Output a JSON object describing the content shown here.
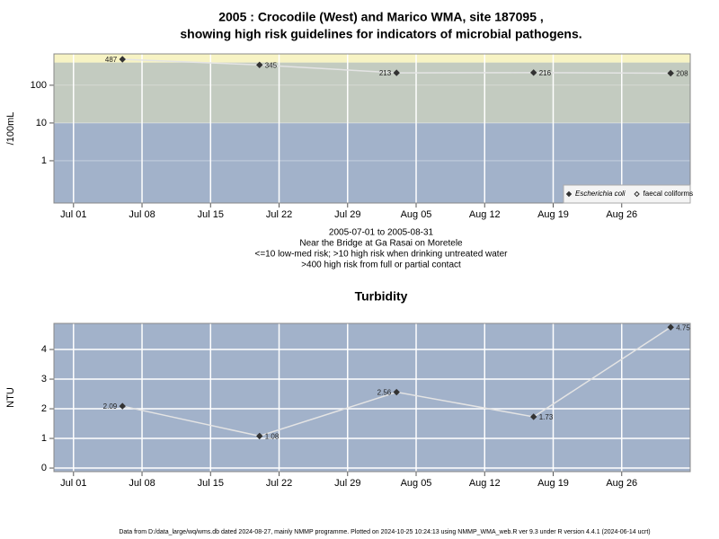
{
  "chart_data": [
    {
      "type": "line",
      "title": [
        "2005 : Crocodile (West) and Marico WMA, site 187095 ,",
        "showing high risk guidelines for indicators of microbial pathogens."
      ],
      "ylabel": "/100mL",
      "log_scale": true,
      "x": [
        "07-06",
        "07-20",
        "08-03",
        "08-17",
        "08-31"
      ],
      "xlim": [
        "06-29",
        "09-02"
      ],
      "xticks": [
        {
          "value": "07-01",
          "label": "Jul 01"
        },
        {
          "value": "07-08",
          "label": "Jul 08"
        },
        {
          "value": "07-15",
          "label": "Jul 15"
        },
        {
          "value": "07-22",
          "label": "Jul 22"
        },
        {
          "value": "07-29",
          "label": "Jul 29"
        },
        {
          "value": "08-05",
          "label": "Aug 05"
        },
        {
          "value": "08-12",
          "label": "Aug 12"
        },
        {
          "value": "08-19",
          "label": "Aug 19"
        },
        {
          "value": "08-26",
          "label": "Aug 26"
        }
      ],
      "ylim": [
        0.076,
        676
      ],
      "yticks": [
        1,
        10,
        100
      ],
      "band_limits": [
        10,
        400
      ],
      "band_colors": [
        "#a2b2ca",
        "#c3cbc0",
        "#f7f3c4"
      ],
      "grid": true,
      "legend_position": "bottom-right",
      "series": [
        {
          "name": "Escherichia coli",
          "color": "#333333",
          "marker": "filled",
          "line_color": "#e4e4e4",
          "values": [
            487,
            345,
            213,
            216,
            208
          ]
        },
        {
          "name": "faecal coliforms",
          "color": "#333333",
          "marker": "open",
          "line_color": "#e4e4e4",
          "values": [
            null,
            null,
            null,
            null,
            null
          ]
        }
      ],
      "notes": [
        "2005-07-01 to 2005-08-31",
        "Near the Bridge at Ga Rasai on Moretele",
        "<=10 low-med risk; >10 high risk when drinking untreated water",
        ">400 high risk from full or partial contact"
      ]
    },
    {
      "type": "line",
      "title": "Turbidity",
      "ylabel": "NTU",
      "log_scale": false,
      "x": [
        "07-06",
        "07-20",
        "08-03",
        "08-17",
        "08-31"
      ],
      "xlim": [
        "06-29",
        "09-02"
      ],
      "xticks": [
        {
          "value": "07-01",
          "label": "Jul 01"
        },
        {
          "value": "07-08",
          "label": "Jul 08"
        },
        {
          "value": "07-15",
          "label": "Jul 15"
        },
        {
          "value": "07-22",
          "label": "Jul 22"
        },
        {
          "value": "07-29",
          "label": "Jul 29"
        },
        {
          "value": "08-05",
          "label": "Aug 05"
        },
        {
          "value": "08-12",
          "label": "Aug 12"
        },
        {
          "value": "08-19",
          "label": "Aug 19"
        },
        {
          "value": "08-26",
          "label": "Aug 26"
        }
      ],
      "ylim": [
        -0.12,
        4.88
      ],
      "yticks": [
        0,
        1,
        2,
        3,
        4
      ],
      "background": "#a2b2ca",
      "grid": true,
      "series": [
        {
          "name": "Turbidity",
          "color": "#333333",
          "marker": "filled",
          "line_color": "#e4e4e4",
          "values": [
            2.09,
            1.08,
            2.56,
            1.73,
            4.75
          ]
        }
      ]
    }
  ],
  "footer": "Data from D:/data_large/wq/wms.db dated 2024-08-27, mainly NMMP programme. Plotted on 2024-10-25 10:24:13 using NMMP_WMA_web.R ver 9.3 under R version 4.4.1 (2024-06-14 ucrt)"
}
